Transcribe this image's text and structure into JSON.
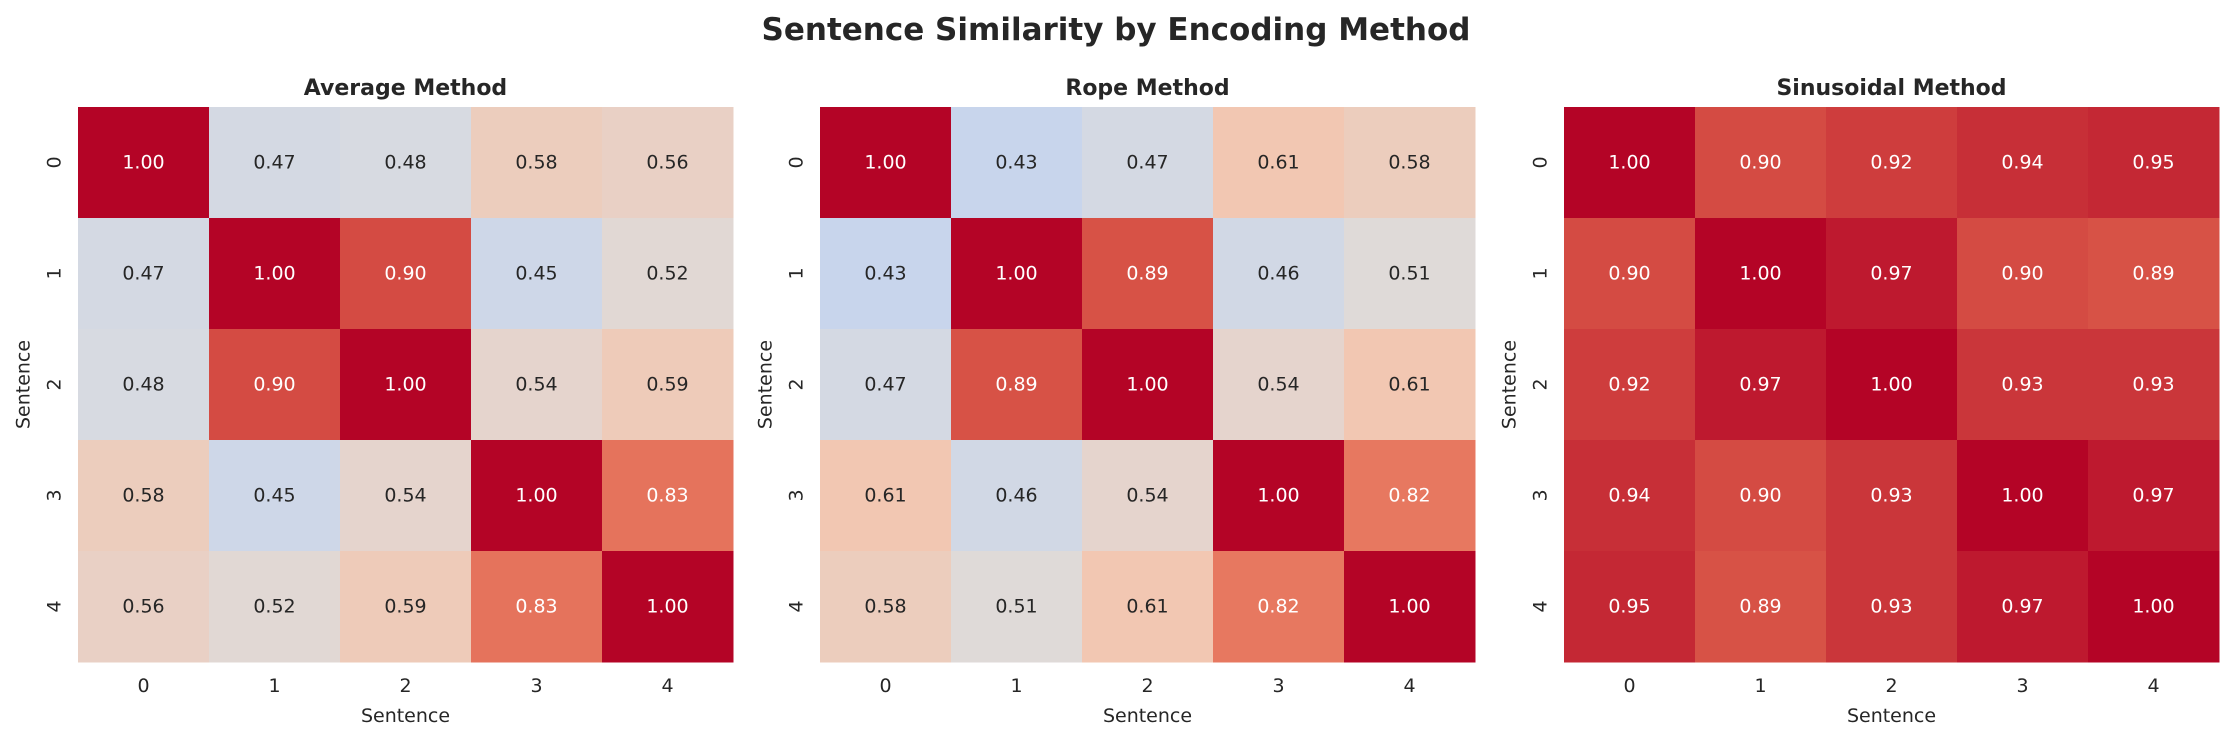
{
  "title": "Sentence Similarity by Encoding Method",
  "chart_data": [
    {
      "type": "heatmap",
      "title": "Average Method",
      "xlabel": "Sentence",
      "ylabel": "Sentence",
      "x_ticks": [
        "0",
        "1",
        "2",
        "3",
        "4"
      ],
      "y_ticks": [
        "0",
        "1",
        "2",
        "3",
        "4"
      ],
      "colormap": "coolwarm",
      "vmin": 0,
      "vmax": 1,
      "colorbar": false,
      "values": [
        [
          1.0,
          0.47,
          0.48,
          0.58,
          0.56
        ],
        [
          0.47,
          1.0,
          0.9,
          0.45,
          0.52
        ],
        [
          0.48,
          0.9,
          1.0,
          0.54,
          0.59
        ],
        [
          0.58,
          0.45,
          0.54,
          1.0,
          0.83
        ],
        [
          0.56,
          0.52,
          0.59,
          0.83,
          1.0
        ]
      ]
    },
    {
      "type": "heatmap",
      "title": "Rope Method",
      "xlabel": "Sentence",
      "ylabel": "Sentence",
      "x_ticks": [
        "0",
        "1",
        "2",
        "3",
        "4"
      ],
      "y_ticks": [
        "0",
        "1",
        "2",
        "3",
        "4"
      ],
      "colormap": "coolwarm",
      "vmin": 0,
      "vmax": 1,
      "colorbar": false,
      "values": [
        [
          1.0,
          0.43,
          0.47,
          0.61,
          0.58
        ],
        [
          0.43,
          1.0,
          0.89,
          0.46,
          0.51
        ],
        [
          0.47,
          0.89,
          1.0,
          0.54,
          0.61
        ],
        [
          0.61,
          0.46,
          0.54,
          1.0,
          0.82
        ],
        [
          0.58,
          0.51,
          0.61,
          0.82,
          1.0
        ]
      ]
    },
    {
      "type": "heatmap",
      "title": "Sinusoidal Method",
      "xlabel": "Sentence",
      "ylabel": "Sentence",
      "x_ticks": [
        "0",
        "1",
        "2",
        "3",
        "4"
      ],
      "y_ticks": [
        "0",
        "1",
        "2",
        "3",
        "4"
      ],
      "colormap": "coolwarm",
      "vmin": 0,
      "vmax": 1,
      "colorbar": false,
      "values": [
        [
          1.0,
          0.9,
          0.92,
          0.94,
          0.95
        ],
        [
          0.9,
          1.0,
          0.97,
          0.9,
          0.89
        ],
        [
          0.92,
          0.97,
          1.0,
          0.93,
          0.93
        ],
        [
          0.94,
          0.9,
          0.93,
          1.0,
          0.97
        ],
        [
          0.95,
          0.89,
          0.93,
          0.97,
          1.0
        ]
      ]
    }
  ]
}
